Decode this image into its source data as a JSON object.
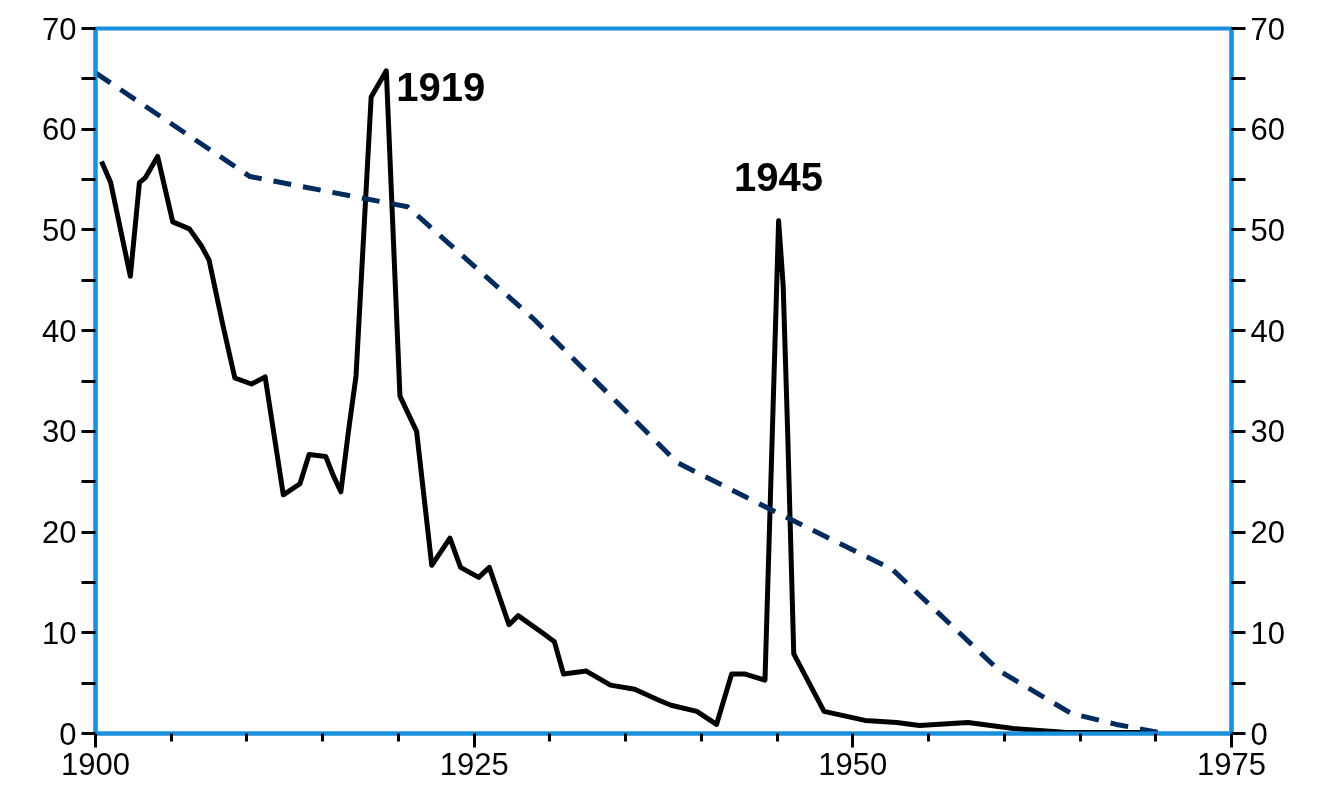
{
  "chart_data": {
    "type": "line",
    "xlim": [
      1900,
      1975
    ],
    "xticks": [
      1900,
      1925,
      1950,
      1975
    ],
    "ylim": [
      0,
      70
    ],
    "yticks": [
      0,
      10,
      20,
      30,
      40,
      50,
      60,
      70
    ],
    "y2lim": [
      0,
      70
    ],
    "y2ticks": [
      0,
      10,
      20,
      30,
      40,
      50,
      60,
      70
    ],
    "grid": false,
    "marker": "none",
    "series": [
      {
        "color": "#000000",
        "line_style": "solid",
        "x": [
          1900.4,
          1901.0,
          1902.3,
          1902.9,
          1903.3,
          1904.1,
          1905.1,
          1906.2,
          1907.0,
          1907.5,
          1908.4,
          1909.2,
          1910.3,
          1911.2,
          1912.4,
          1913.5,
          1914.1,
          1915.2,
          1915.7,
          1916.2,
          1916.7,
          1917.2,
          1918.2,
          1919.2,
          1920.1,
          1921.2,
          1922.2,
          1923.4,
          1924.1,
          1925.3,
          1926.0,
          1927.3,
          1927.9,
          1929.5,
          1930.3,
          1930.9,
          1932.4,
          1934.0,
          1935.6,
          1937.2,
          1938.0,
          1939.7,
          1941.0,
          1942.0,
          1942.9,
          1944.2,
          1945.1,
          1945.4,
          1945.7,
          1946.1,
          1948.1,
          1950.8,
          1952.9,
          1954.4,
          1957.6,
          1960.6,
          1964.1,
          1970.0
        ],
        "values": [
          56.8,
          54.7,
          45.4,
          54.7,
          55.2,
          57.3,
          50.8,
          50.1,
          48.4,
          47.0,
          40.6,
          35.3,
          34.7,
          35.4,
          23.7,
          24.8,
          27.7,
          27.5,
          25.6,
          24.0,
          30.0,
          35.5,
          63.2,
          65.8,
          33.5,
          30.0,
          16.7,
          19.4,
          16.5,
          15.5,
          16.5,
          10.8,
          11.7,
          10.0,
          9.1,
          5.9,
          6.2,
          4.8,
          4.4,
          3.3,
          2.8,
          2.2,
          0.9,
          5.9,
          5.9,
          5.3,
          50.9,
          44.5,
          29.8,
          7.9,
          2.2,
          1.3,
          1.1,
          0.8,
          1.1,
          0.5,
          0.1,
          0.1
        ]
      },
      {
        "color": "#002b5c",
        "line_style": "dashed",
        "x": [
          1900.0,
          1910.2,
          1920.6,
          1928.9,
          1938.4,
          1944.9,
          1952.6,
          1959.7,
          1964.4,
          1967.4,
          1970.2
        ],
        "values": [
          65.6,
          55.3,
          52.3,
          41.2,
          26.9,
          22.0,
          16.3,
          6.2,
          2.0,
          0.9,
          0.1
        ]
      }
    ],
    "annotations": [
      {
        "text": "1919",
        "x": 1919.2,
        "y": 65.8
      },
      {
        "text": "1945",
        "x": 1945.1,
        "y": 50.9
      }
    ]
  }
}
